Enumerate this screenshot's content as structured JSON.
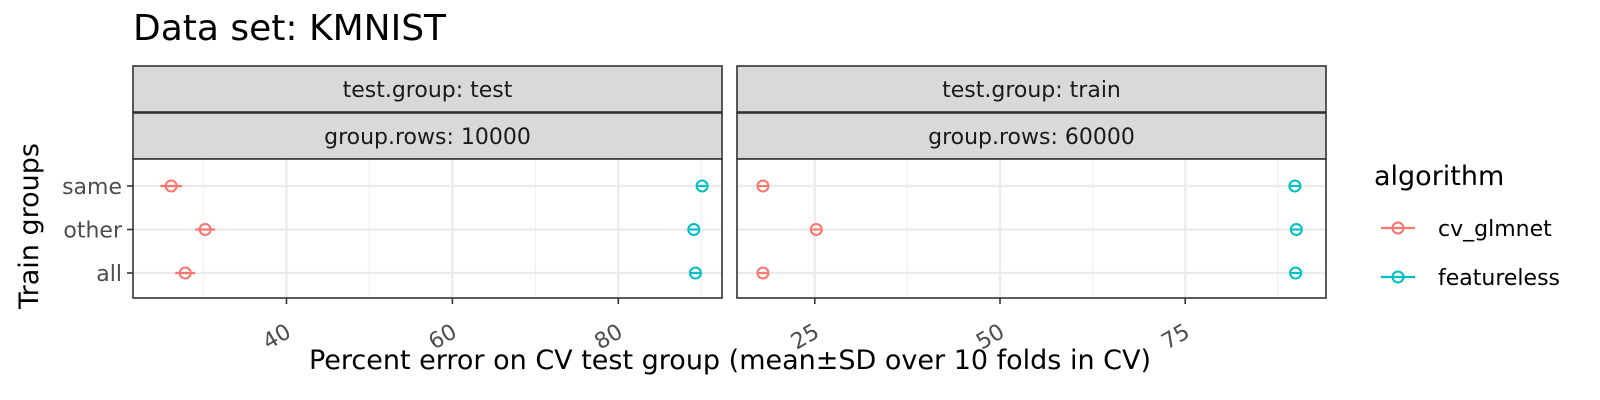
{
  "chart_data": {
    "type": "scatter",
    "title": "Data set: KMNIST",
    "xlabel": "Percent error on CV test group (mean±SD over 10 folds in CV)",
    "ylabel": "Train groups",
    "categories": [
      "all",
      "other",
      "same"
    ],
    "legend": {
      "title": "algorithm",
      "placement": "right",
      "entries": [
        {
          "name": "cv_glmnet",
          "color": "#F8766D"
        },
        {
          "name": "featureless",
          "color": "#00BFC4"
        }
      ]
    },
    "grid": true,
    "panels": [
      {
        "strips": [
          "test.group: test",
          "group.rows: 10000"
        ],
        "xlim": [
          21.5,
          92.5
        ],
        "xticks": [
          40,
          60,
          80
        ],
        "series": [
          {
            "name": "cv_glmnet",
            "points": [
              {
                "y": "same",
                "mean": 26.1,
                "sd": 1.3
              },
              {
                "y": "other",
                "mean": 30.2,
                "sd": 1.2
              },
              {
                "y": "all",
                "mean": 27.8,
                "sd": 1.2
              }
            ]
          },
          {
            "name": "featureless",
            "points": [
              {
                "y": "same",
                "mean": 90.1,
                "sd": 0.3
              },
              {
                "y": "other",
                "mean": 89.1,
                "sd": 0.3
              },
              {
                "y": "all",
                "mean": 89.3,
                "sd": 0.3
              }
            ]
          }
        ]
      },
      {
        "strips": [
          "test.group: train",
          "group.rows: 60000"
        ],
        "xlim": [
          14.5,
          94
        ],
        "xticks": [
          25,
          50,
          75
        ],
        "series": [
          {
            "name": "cv_glmnet",
            "points": [
              {
                "y": "same",
                "mean": 18.0,
                "sd": 0.2
              },
              {
                "y": "other",
                "mean": 25.2,
                "sd": 0.2
              },
              {
                "y": "all",
                "mean": 18.0,
                "sd": 0.2
              }
            ]
          },
          {
            "name": "featureless",
            "points": [
              {
                "y": "same",
                "mean": 89.8,
                "sd": 0.1
              },
              {
                "y": "other",
                "mean": 90.0,
                "sd": 0.1
              },
              {
                "y": "all",
                "mean": 89.9,
                "sd": 0.1
              }
            ]
          }
        ]
      }
    ]
  }
}
